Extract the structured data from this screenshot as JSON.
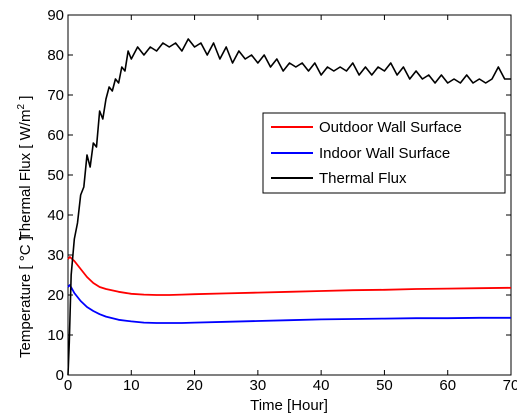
{
  "chart_data": {
    "type": "line",
    "xlabel": "Time [Hour]",
    "ylabel_main": "Temperature [ °C ]",
    "ylabel_flux_prefix": "Thermal Flux [ W/m",
    "ylabel_flux_sup": "2",
    "ylabel_flux_suffix": " ]",
    "xlim": [
      0,
      70
    ],
    "ylim": [
      0,
      90
    ],
    "x_ticks": [
      0,
      10,
      20,
      30,
      40,
      50,
      60,
      70
    ],
    "y_ticks": [
      0,
      10,
      20,
      30,
      40,
      50,
      60,
      70,
      80,
      90
    ],
    "grid": false,
    "legend_position": "right",
    "series": [
      {
        "name": "Outdoor Wall Surface",
        "color": "#ff0000",
        "x": [
          0,
          0.3,
          1,
          2,
          3,
          4,
          5,
          6,
          8,
          10,
          12,
          14,
          16,
          18,
          20,
          25,
          30,
          35,
          40,
          45,
          50,
          55,
          60,
          65,
          70
        ],
        "y": [
          29,
          29.5,
          28.5,
          26.5,
          24.5,
          23,
          22,
          21.5,
          20.8,
          20.3,
          20.1,
          20,
          20,
          20.1,
          20.2,
          20.4,
          20.6,
          20.8,
          21,
          21.2,
          21.3,
          21.5,
          21.6,
          21.7,
          21.8
        ]
      },
      {
        "name": "Indoor Wall Surface",
        "color": "#0000ff",
        "x": [
          0,
          0.3,
          1,
          2,
          3,
          4,
          5,
          6,
          8,
          10,
          12,
          14,
          16,
          18,
          20,
          25,
          30,
          35,
          40,
          45,
          50,
          55,
          60,
          65,
          70
        ],
        "y": [
          22,
          22.5,
          20.5,
          18.5,
          17,
          16,
          15.2,
          14.6,
          13.8,
          13.4,
          13.1,
          13,
          13,
          13,
          13.1,
          13.3,
          13.5,
          13.7,
          13.9,
          14,
          14.1,
          14.2,
          14.2,
          14.3,
          14.3
        ]
      },
      {
        "name": "Thermal Flux",
        "color": "#000000",
        "x": [
          0,
          0.2,
          0.5,
          1,
          1.5,
          2,
          2.5,
          3,
          3.5,
          4,
          4.5,
          5,
          5.5,
          6,
          6.5,
          7,
          7.5,
          8,
          8.5,
          9,
          9.5,
          10,
          11,
          12,
          13,
          14,
          15,
          16,
          17,
          18,
          19,
          20,
          21,
          22,
          23,
          24,
          25,
          26,
          27,
          28,
          29,
          30,
          31,
          32,
          33,
          34,
          35,
          36,
          37,
          38,
          39,
          40,
          41,
          42,
          43,
          44,
          45,
          46,
          47,
          48,
          49,
          50,
          51,
          52,
          53,
          54,
          55,
          56,
          57,
          58,
          59,
          60,
          61,
          62,
          63,
          64,
          65,
          66,
          67,
          68,
          69,
          70
        ],
        "y": [
          0,
          8,
          25,
          34,
          38,
          45,
          47,
          55,
          52,
          58,
          57,
          66,
          64,
          69,
          72,
          71,
          74,
          73,
          77,
          76,
          81,
          79,
          82,
          80,
          82,
          81,
          83,
          82,
          83,
          81,
          84,
          82,
          83,
          80,
          83,
          79,
          82,
          78,
          81,
          79,
          80,
          78,
          80,
          77,
          79,
          76,
          78,
          77,
          78,
          76,
          78,
          75,
          77,
          76,
          77,
          76,
          78,
          75,
          77,
          75,
          77,
          76,
          78,
          75,
          77,
          74,
          76,
          74,
          75,
          73,
          75,
          73,
          74,
          73,
          75,
          73,
          74,
          73,
          74,
          77,
          74,
          74
        ]
      }
    ]
  }
}
